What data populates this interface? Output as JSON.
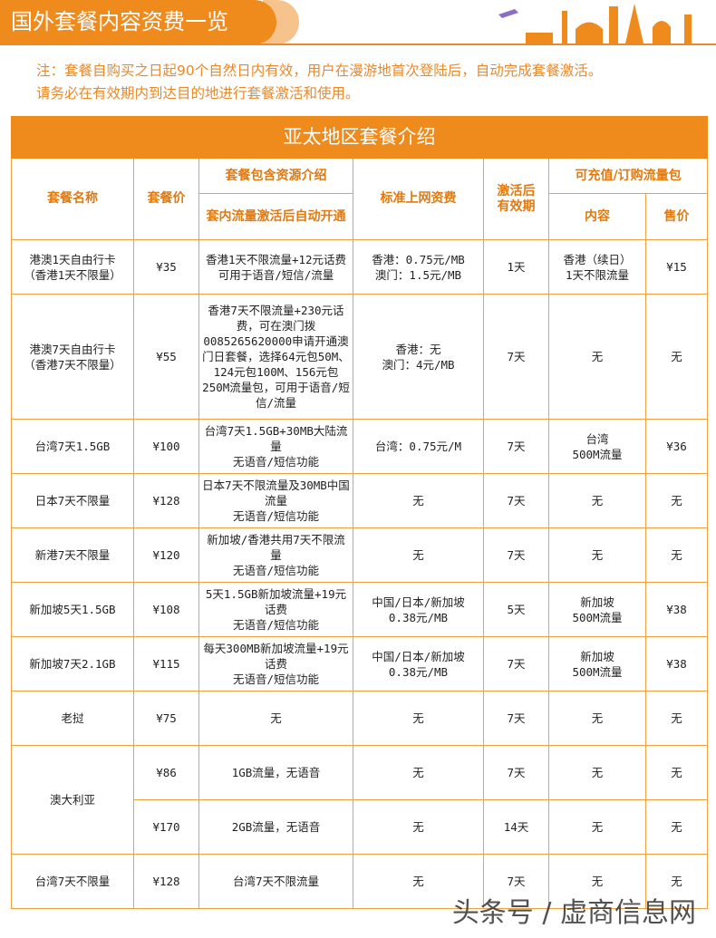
{
  "banner": {
    "title": "国外套餐内容资费一览"
  },
  "note": {
    "line1": "注：套餐自购买之日起90个自然日内有效，用户在漫游地首次登陆后，自动完成套餐激活。",
    "line2": "请务必在有效期内到达目的地进行套餐激活和使用。"
  },
  "table": {
    "title": "亚太地区套餐介绍",
    "headers": {
      "name": "套餐名称",
      "price": "套餐价",
      "resources": "套餐包含资源介绍",
      "resources_sub": "套内流量激活后自动开通",
      "rate": "标准上网资费",
      "validity": "激活后有效期",
      "addon": "可充值/订购流量包",
      "addon_content": "内容",
      "addon_price": "售价"
    },
    "rows": [
      {
        "name": "港澳1天自由行卡\n（香港1天不限量）",
        "price": "¥35",
        "resources": "香港1天不限流量+12元话费\n可用于语音/短信/流量",
        "rate": "香港：0.75元/MB\n澳门：1.5元/MB",
        "validity": "1天",
        "addon_content": "香港（续日）\n1天不限流量",
        "addon_price": "¥15"
      },
      {
        "name": "港澳7天自由行卡\n（香港7天不限量）",
        "price": "¥55",
        "resources": "香港7天不限流量+230元话费，可在澳门拨0085265620000申请开通澳门日套餐，选择64元包50M、124元包100M、156元包250M流量包，可用于语音/短信/流量",
        "rate": "香港：无\n澳门：4元/MB",
        "validity": "7天",
        "addon_content": "无",
        "addon_price": "无"
      },
      {
        "name": "台湾7天1.5GB",
        "price": "¥100",
        "resources": "台湾7天1.5GB+30MB大陆流量\n无语音/短信功能",
        "rate": "台湾：0.75元/M",
        "validity": "7天",
        "addon_content": "台湾\n500M流量",
        "addon_price": "¥36"
      },
      {
        "name": "日本7天不限量",
        "price": "¥128",
        "resources": "日本7天不限流量及30MB中国流量\n无语音/短信功能",
        "rate": "无",
        "validity": "7天",
        "addon_content": "无",
        "addon_price": "无"
      },
      {
        "name": "新港7天不限量",
        "price": "¥120",
        "resources": "新加坡/香港共用7天不限流量\n无语音/短信功能",
        "rate": "无",
        "validity": "7天",
        "addon_content": "无",
        "addon_price": "无"
      },
      {
        "name": "新加坡5天1.5GB",
        "price": "¥108",
        "resources": "5天1.5GB新加坡流量+19元话费\n无语音/短信功能",
        "rate": "中国/日本/新加坡\n0.38元/MB",
        "validity": "5天",
        "addon_content": "新加坡\n500M流量",
        "addon_price": "¥38"
      },
      {
        "name": "新加坡7天2.1GB",
        "price": "¥115",
        "resources": "每天300MB新加坡流量+19元话费\n无语音/短信功能",
        "rate": "中国/日本/新加坡\n0.38元/MB",
        "validity": "7天",
        "addon_content": "新加坡\n500M流量",
        "addon_price": "¥38"
      },
      {
        "name": "老挝",
        "price": "¥75",
        "resources": "无",
        "rate": "无",
        "validity": "7天",
        "addon_content": "无",
        "addon_price": "无"
      },
      {
        "name": "澳大利亚",
        "rowspan": 2,
        "price": "¥86",
        "resources": "1GB流量，无语音",
        "rate": "无",
        "validity": "7天",
        "addon_content": "无",
        "addon_price": "无"
      },
      {
        "price": "¥170",
        "resources": "2GB流量，无语音",
        "rate": "无",
        "validity": "14天",
        "addon_content": "无",
        "addon_price": "无"
      },
      {
        "name": "台湾7天不限量",
        "price": "¥128",
        "resources": "台湾7天不限流量",
        "rate": "无",
        "validity": "7天",
        "addon_content": "无",
        "addon_price": "无"
      }
    ]
  },
  "watermark": "头条号 / 虚商信息网",
  "colors": {
    "accent": "#ef8a1c",
    "border": "#f0a040"
  }
}
